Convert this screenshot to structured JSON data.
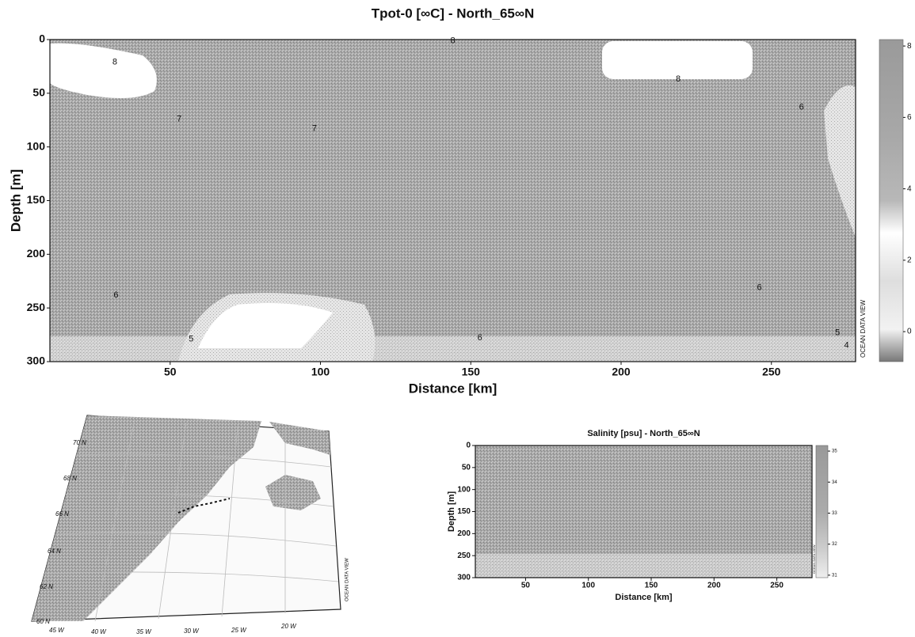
{
  "chart_data": [
    {
      "type": "section",
      "title": "Tpot-0 [∞C] - North_65∞N",
      "x_label": "Distance [km]",
      "y_label": "Depth [m]",
      "xlim": [
        10,
        278
      ],
      "ylim": [
        0,
        300
      ],
      "y_inverted": true,
      "xticks": [
        50,
        100,
        150,
        200,
        250
      ],
      "yticks": [
        0,
        50,
        100,
        150,
        200,
        250,
        300
      ],
      "colorbar_lim": [
        -0.84,
        8.18
      ],
      "colorbar_ticks": [
        0,
        2,
        4,
        6,
        8
      ],
      "contour_labels": {
        "x": [
          31.6,
          144,
          219,
          260,
          53,
          98,
          32,
          153,
          246,
          57,
          272,
          275
        ],
        "y": [
          21,
          1,
          37,
          63,
          74,
          83,
          238,
          278,
          231,
          279,
          273,
          285
        ],
        "values": [
          8,
          8,
          8,
          6,
          7,
          7,
          6,
          6,
          6,
          5,
          5,
          4
        ]
      },
      "watermark": "OCEAN DATA VIEW"
    },
    {
      "type": "section",
      "title": "Salinity [psu] - North_65∞N",
      "x_label": "Distance [km]",
      "y_label": "Depth [m]",
      "xlim": [
        10,
        278
      ],
      "ylim": [
        0,
        300
      ],
      "y_inverted": true,
      "xticks": [
        50,
        100,
        150,
        200,
        250
      ],
      "yticks": [
        0,
        50,
        100,
        150,
        200,
        250,
        300
      ],
      "colorbar_lim": [
        30.92,
        35.18
      ],
      "colorbar_ticks": [
        31,
        32,
        33,
        34,
        35
      ],
      "watermark": "OCEAN DATA VIEW"
    }
  ],
  "map": {
    "lat_labels": [
      "70 N",
      "68 N",
      "66 N",
      "64 N",
      "62 N",
      "60 N"
    ],
    "lon_labels": [
      "45 W",
      "40 W",
      "35 W",
      "30 W",
      "25 W",
      "20 W"
    ],
    "credit": "OCEAN DATA VIEW"
  }
}
